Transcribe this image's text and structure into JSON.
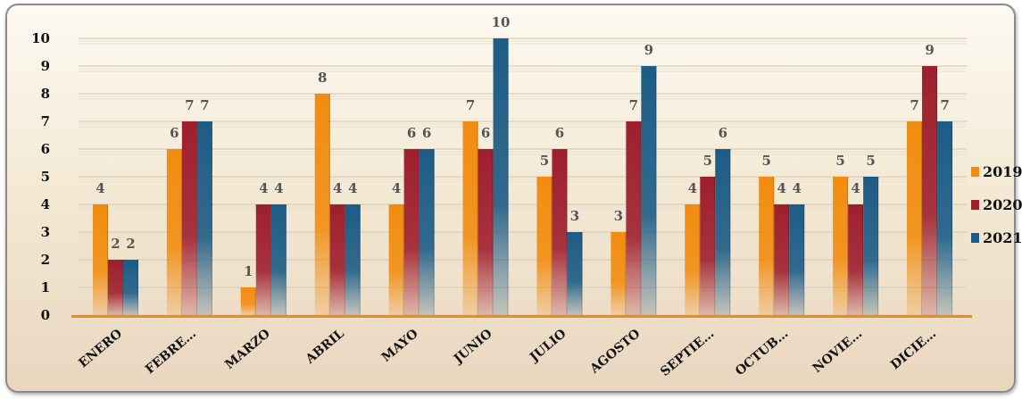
{
  "chart_data": {
    "type": "bar",
    "title": "",
    "xlabel": "",
    "ylabel": "",
    "ylim": [
      0,
      10
    ],
    "yticks": [
      "0",
      "1",
      "2",
      "3",
      "4",
      "5",
      "6",
      "7",
      "8",
      "9",
      "10"
    ],
    "grid": true,
    "legend_position": "right",
    "categories": [
      "ENERO",
      "FEBRE…",
      "MARZO",
      "ABRIL",
      "MAYO",
      "JUNIO",
      "JULIO",
      "AGOSTO",
      "SEPTIE…",
      "OCTUB…",
      "NOVIE…",
      "DICIE…"
    ],
    "series": [
      {
        "name": "2019",
        "color": "#f28c0f",
        "values": [
          4,
          6,
          1,
          8,
          4,
          7,
          5,
          3,
          4,
          5,
          5,
          7
        ]
      },
      {
        "name": "2020",
        "color": "#9e1f2e",
        "values": [
          2,
          7,
          4,
          4,
          6,
          6,
          6,
          7,
          5,
          4,
          4,
          9
        ]
      },
      {
        "name": "2021",
        "color": "#1d5c86",
        "values": [
          2,
          7,
          4,
          4,
          6,
          10,
          3,
          9,
          6,
          4,
          5,
          7
        ]
      }
    ]
  }
}
